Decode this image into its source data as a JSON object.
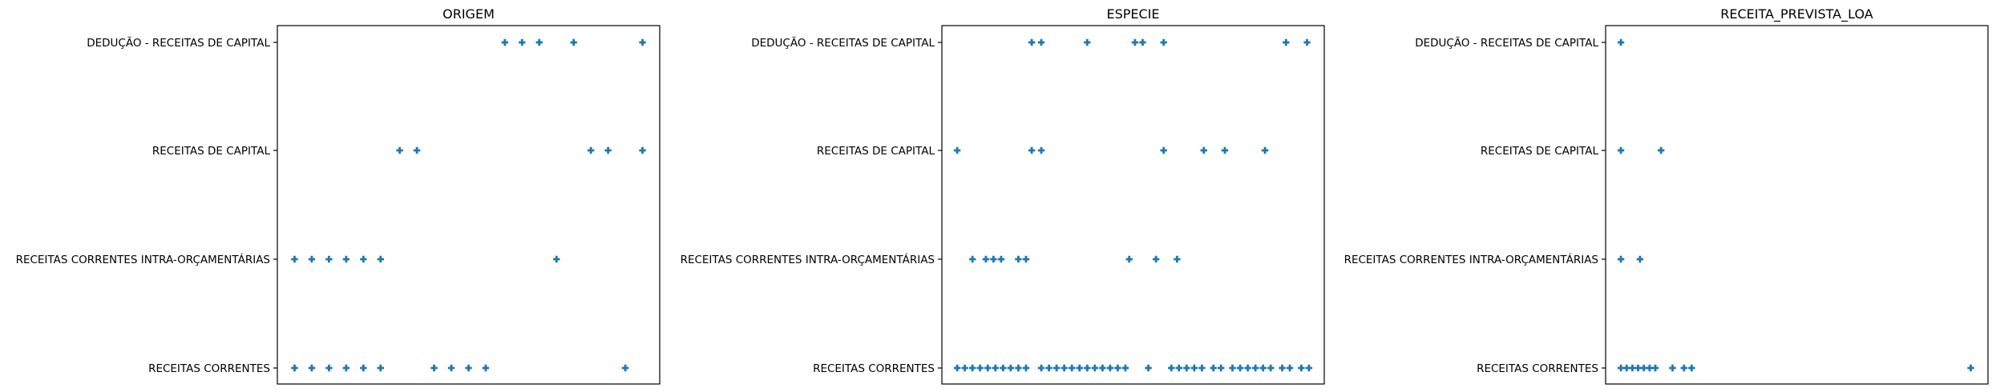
{
  "chart_data": [
    {
      "type": "scatter",
      "title": "ORIGEM",
      "xlabel": "",
      "ylabel": "",
      "categories": [
        "RECEITAS CORRENTES",
        "RECEITAS CORRENTES INTRA-ORÇAMENTÁRIAS",
        "RECEITAS DE CAPITAL",
        "DEDUÇÃO - RECEITAS DE CAPITAL"
      ],
      "xlim": [
        0,
        1
      ],
      "points": [
        {
          "category": "DEDUÇÃO - RECEITAS DE CAPITAL",
          "x": [
            0.595,
            0.64,
            0.685,
            0.775,
            0.955
          ]
        },
        {
          "category": "RECEITAS DE CAPITAL",
          "x": [
            0.32,
            0.365,
            0.82,
            0.865,
            0.955
          ]
        },
        {
          "category": "RECEITAS CORRENTES INTRA-ORÇAMENTÁRIAS",
          "x": [
            0.045,
            0.09,
            0.135,
            0.18,
            0.225,
            0.27,
            0.73
          ]
        },
        {
          "category": "RECEITAS CORRENTES",
          "x": [
            0.045,
            0.09,
            0.135,
            0.18,
            0.225,
            0.27,
            0.41,
            0.455,
            0.5,
            0.545,
            0.91
          ]
        }
      ]
    },
    {
      "type": "scatter",
      "title": "ESPECIE",
      "xlabel": "",
      "ylabel": "",
      "categories": [
        "RECEITAS CORRENTES",
        "RECEITAS CORRENTES INTRA-ORÇAMENTÁRIAS",
        "RECEITAS DE CAPITAL",
        "DEDUÇÃO - RECEITAS DE CAPITAL"
      ],
      "xlim": [
        0,
        1
      ],
      "points": [
        {
          "category": "DEDUÇÃO - RECEITAS DE CAPITAL",
          "x": [
            0.235,
            0.26,
            0.38,
            0.505,
            0.525,
            0.58,
            0.9,
            0.955
          ]
        },
        {
          "category": "RECEITAS DE CAPITAL",
          "x": [
            0.04,
            0.235,
            0.26,
            0.58,
            0.685,
            0.74,
            0.845
          ]
        },
        {
          "category": "RECEITAS CORRENTES INTRA-ORÇAMENTÁRIAS",
          "x": [
            0.08,
            0.115,
            0.135,
            0.155,
            0.2,
            0.22,
            0.49,
            0.56,
            0.615
          ]
        },
        {
          "category": "RECEITAS CORRENTES",
          "x": [
            0.04,
            0.06,
            0.08,
            0.1,
            0.12,
            0.14,
            0.16,
            0.18,
            0.2,
            0.22,
            0.26,
            0.28,
            0.3,
            0.32,
            0.34,
            0.36,
            0.38,
            0.4,
            0.42,
            0.44,
            0.46,
            0.48,
            0.54,
            0.6,
            0.62,
            0.64,
            0.66,
            0.68,
            0.71,
            0.73,
            0.76,
            0.78,
            0.8,
            0.82,
            0.84,
            0.86,
            0.89,
            0.91,
            0.94,
            0.96
          ]
        }
      ]
    },
    {
      "type": "scatter",
      "title": "RECEITA_PREVISTA_LOA",
      "xlabel": "",
      "ylabel": "",
      "categories": [
        "RECEITAS CORRENTES",
        "RECEITAS CORRENTES INTRA-ORÇAMENTÁRIAS",
        "RECEITAS DE CAPITAL",
        "DEDUÇÃO - RECEITAS DE CAPITAL"
      ],
      "xlim": [
        0,
        1
      ],
      "points": [
        {
          "category": "DEDUÇÃO - RECEITAS DE CAPITAL",
          "x": [
            0.04
          ]
        },
        {
          "category": "RECEITAS DE CAPITAL",
          "x": [
            0.04,
            0.145
          ]
        },
        {
          "category": "RECEITAS CORRENTES INTRA-ORÇAMENTÁRIAS",
          "x": [
            0.04,
            0.09
          ]
        },
        {
          "category": "RECEITAS CORRENTES",
          "x": [
            0.04,
            0.055,
            0.07,
            0.085,
            0.1,
            0.115,
            0.13,
            0.175,
            0.205,
            0.225,
            0.955
          ]
        }
      ]
    }
  ]
}
